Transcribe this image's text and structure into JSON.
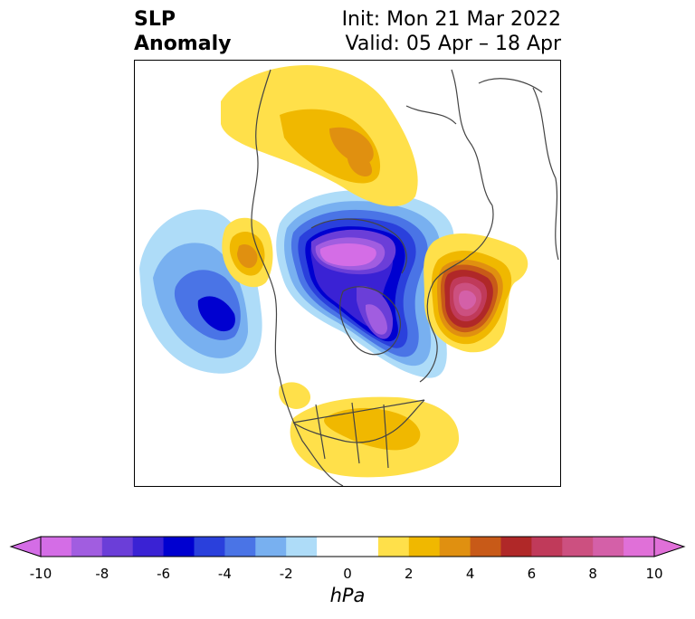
{
  "title": {
    "left_line1": "SLP",
    "left_line2": "Anomaly",
    "init": "Init: Mon 21 Mar 2022",
    "valid": "Valid: 05 Apr – 18 Apr"
  },
  "colorbar": {
    "unit": "hPa",
    "tick_labels": [
      "-10",
      "-8",
      "-6",
      "-4",
      "-2",
      "0",
      "2",
      "4",
      "6",
      "8",
      "10"
    ],
    "min": -10,
    "max": 10,
    "step": 1,
    "extend": "both",
    "colors": [
      "#d46de6",
      "#a15de0",
      "#6b3ed8",
      "#3a22d4",
      "#0000d0",
      "#2a40dc",
      "#4a74e6",
      "#78b0f0",
      "#aedcf8",
      "#ffffff",
      "#ffffff",
      "#ffe04a",
      "#f0b800",
      "#e09010",
      "#c85a18",
      "#b02828",
      "#c03a5a",
      "#cc5080",
      "#d460a8",
      "#e070d8"
    ]
  },
  "map": {
    "region": "North America / North Pacific / Arctic polar stereographic",
    "land_outline_color": "#444444"
  }
}
